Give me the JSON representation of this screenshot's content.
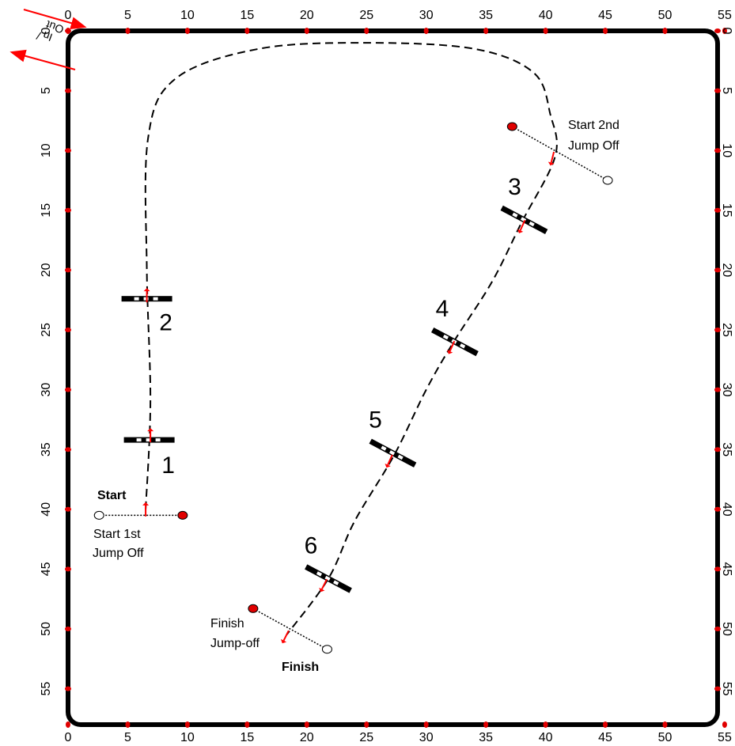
{
  "arena": {
    "width_m": 55,
    "length_m": 58,
    "x_ticks": [
      "0",
      "5",
      "10",
      "15",
      "20",
      "25",
      "30",
      "35",
      "40",
      "45",
      "50",
      "55"
    ],
    "y_ticks": [
      "0",
      "5",
      "10",
      "15",
      "20",
      "25",
      "30",
      "35",
      "40",
      "45",
      "50",
      "55"
    ],
    "border_color": "#000000",
    "marker_color": "#e00000"
  },
  "entrance": {
    "in_label": "In",
    "sep": "/",
    "out_label": "Out",
    "arrow_color": "#ff0000"
  },
  "course": {
    "path_style": "dashed",
    "path_points": [
      [
        6.5,
        40
      ],
      [
        6.9,
        31
      ],
      [
        6.6,
        20
      ],
      [
        6.7,
        9
      ],
      [
        9,
        4
      ],
      [
        16,
        1.5
      ],
      [
        25,
        1
      ],
      [
        34,
        1.5
      ],
      [
        39,
        3.5
      ],
      [
        40.4,
        7
      ],
      [
        40.8,
        10.5
      ],
      [
        38,
        16
      ],
      [
        35.5,
        21
      ],
      [
        32.3,
        26
      ],
      [
        30,
        30
      ],
      [
        27.3,
        35.5
      ],
      [
        24,
        41
      ],
      [
        21.8,
        45.8
      ],
      [
        18.3,
        50.5
      ]
    ]
  },
  "fences": [
    {
      "number": "1",
      "x": 6.8,
      "y": 34.2,
      "angle": 0
    },
    {
      "number": "2",
      "x": 6.6,
      "y": 22.4,
      "angle": 0
    },
    {
      "number": "3",
      "x": 38.2,
      "y": 15.8,
      "angle": 28
    },
    {
      "number": "4",
      "x": 32.4,
      "y": 26.0,
      "angle": 28
    },
    {
      "number": "5",
      "x": 27.2,
      "y": 35.3,
      "angle": 28
    },
    {
      "number": "6",
      "x": 21.8,
      "y": 45.8,
      "angle": 28
    }
  ],
  "lines": {
    "start": {
      "label": "Start",
      "jump_off_label_1": "Start 1st",
      "jump_off_label_2": "Jump Off",
      "from": [
        2.6,
        40.5
      ],
      "to": [
        9.6,
        40.5
      ]
    },
    "start_2nd": {
      "label_1": "Start 2nd",
      "label_2": "Jump Off",
      "from": [
        37.2,
        8.0
      ],
      "to": [
        45.2,
        12.5
      ]
    },
    "finish": {
      "label": "Finish",
      "jump_off_label_1": "Finish",
      "jump_off_label_2": "Jump-off",
      "from": [
        15.5,
        48.3
      ],
      "to": [
        21.7,
        51.7
      ]
    }
  }
}
